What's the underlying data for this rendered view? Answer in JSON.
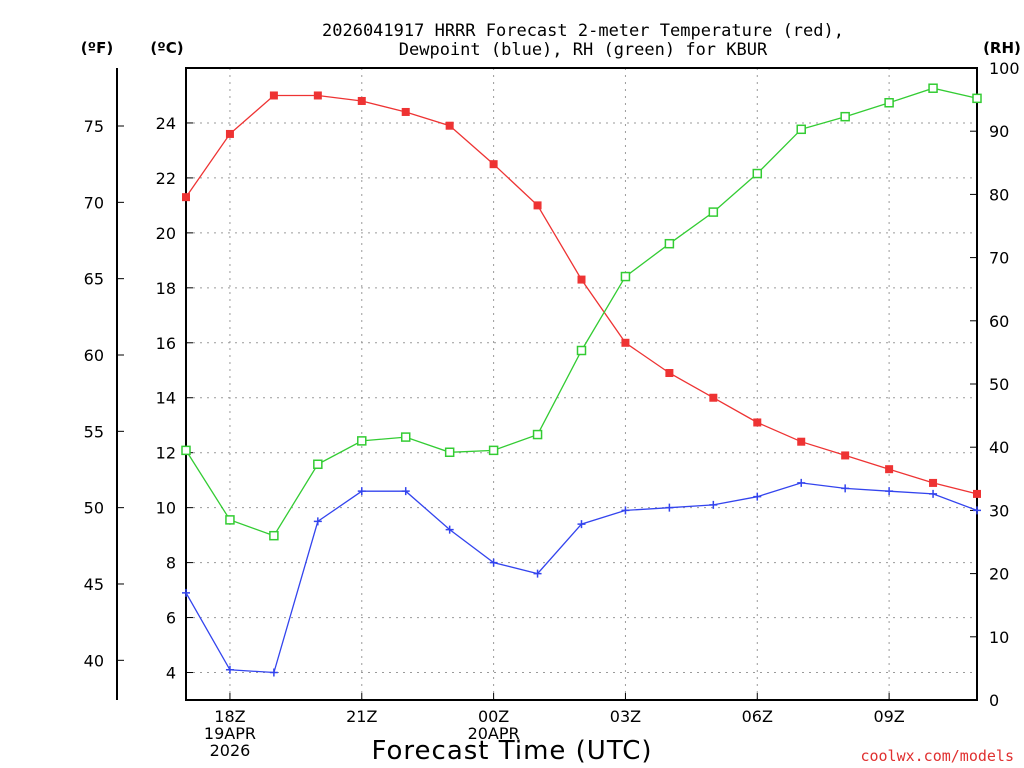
{
  "chart_data": {
    "type": "line",
    "title_line1": "2026041917 HRRR Forecast 2-meter Temperature (red),",
    "title_line2": "Dewpoint (blue), RH (green) for KBUR",
    "xlabel": "Forecast Time (UTC)",
    "credit": "coolwx.com/models",
    "units": {
      "fahrenheit": "(ºF)",
      "celsius": "(ºC)",
      "rh": "(RH)"
    },
    "celsius_axis": {
      "range": [
        3,
        26
      ],
      "ticks": [
        4,
        6,
        8,
        10,
        12,
        14,
        16,
        18,
        20,
        22,
        24
      ]
    },
    "fahrenheit_axis": {
      "range": [
        37.4,
        78.8
      ],
      "ticks": [
        40,
        45,
        50,
        55,
        60,
        65,
        70,
        75
      ]
    },
    "rh_axis": {
      "range": [
        0,
        100
      ],
      "ticks": [
        0,
        10,
        20,
        30,
        40,
        50,
        60,
        70,
        80,
        90,
        100
      ]
    },
    "x_range": [
      17,
      35
    ],
    "x_ticks": [
      {
        "x": 18,
        "lines": [
          "18Z",
          "19APR",
          "2026"
        ]
      },
      {
        "x": 21,
        "lines": [
          "21Z"
        ]
      },
      {
        "x": 24,
        "lines": [
          "00Z",
          "20APR"
        ]
      },
      {
        "x": 27,
        "lines": [
          "03Z"
        ]
      },
      {
        "x": 30,
        "lines": [
          "06Z"
        ]
      },
      {
        "x": 33,
        "lines": [
          "09Z"
        ]
      }
    ],
    "x": [
      17,
      18,
      19,
      20,
      21,
      22,
      23,
      24,
      25,
      26,
      27,
      28,
      29,
      30,
      31,
      32,
      33,
      34,
      35
    ],
    "series": [
      {
        "name": "2-meter Temperature",
        "axis": "celsius",
        "color": "#ee3333",
        "marker": "filled-square",
        "values": [
          21.3,
          23.6,
          25.0,
          25.0,
          24.8,
          24.4,
          23.9,
          22.5,
          21.0,
          18.3,
          16.0,
          14.9,
          14.0,
          13.1,
          12.4,
          11.9,
          11.4,
          10.9,
          10.5
        ]
      },
      {
        "name": "Dewpoint",
        "axis": "celsius",
        "color": "#3344ee",
        "marker": "plus",
        "values": [
          6.9,
          4.1,
          4.0,
          9.5,
          10.6,
          10.6,
          9.2,
          8.0,
          7.6,
          9.4,
          9.9,
          10.0,
          10.1,
          10.4,
          10.9,
          10.7,
          10.6,
          10.5,
          9.9
        ]
      },
      {
        "name": "RH",
        "axis": "rh",
        "color": "#33cc33",
        "marker": "open-square",
        "values": [
          39.5,
          28.5,
          26.0,
          37.3,
          41.0,
          41.6,
          39.2,
          39.5,
          42.0,
          55.3,
          67.0,
          72.2,
          77.2,
          83.3,
          90.3,
          92.3,
          94.5,
          96.8,
          95.2
        ]
      }
    ]
  }
}
